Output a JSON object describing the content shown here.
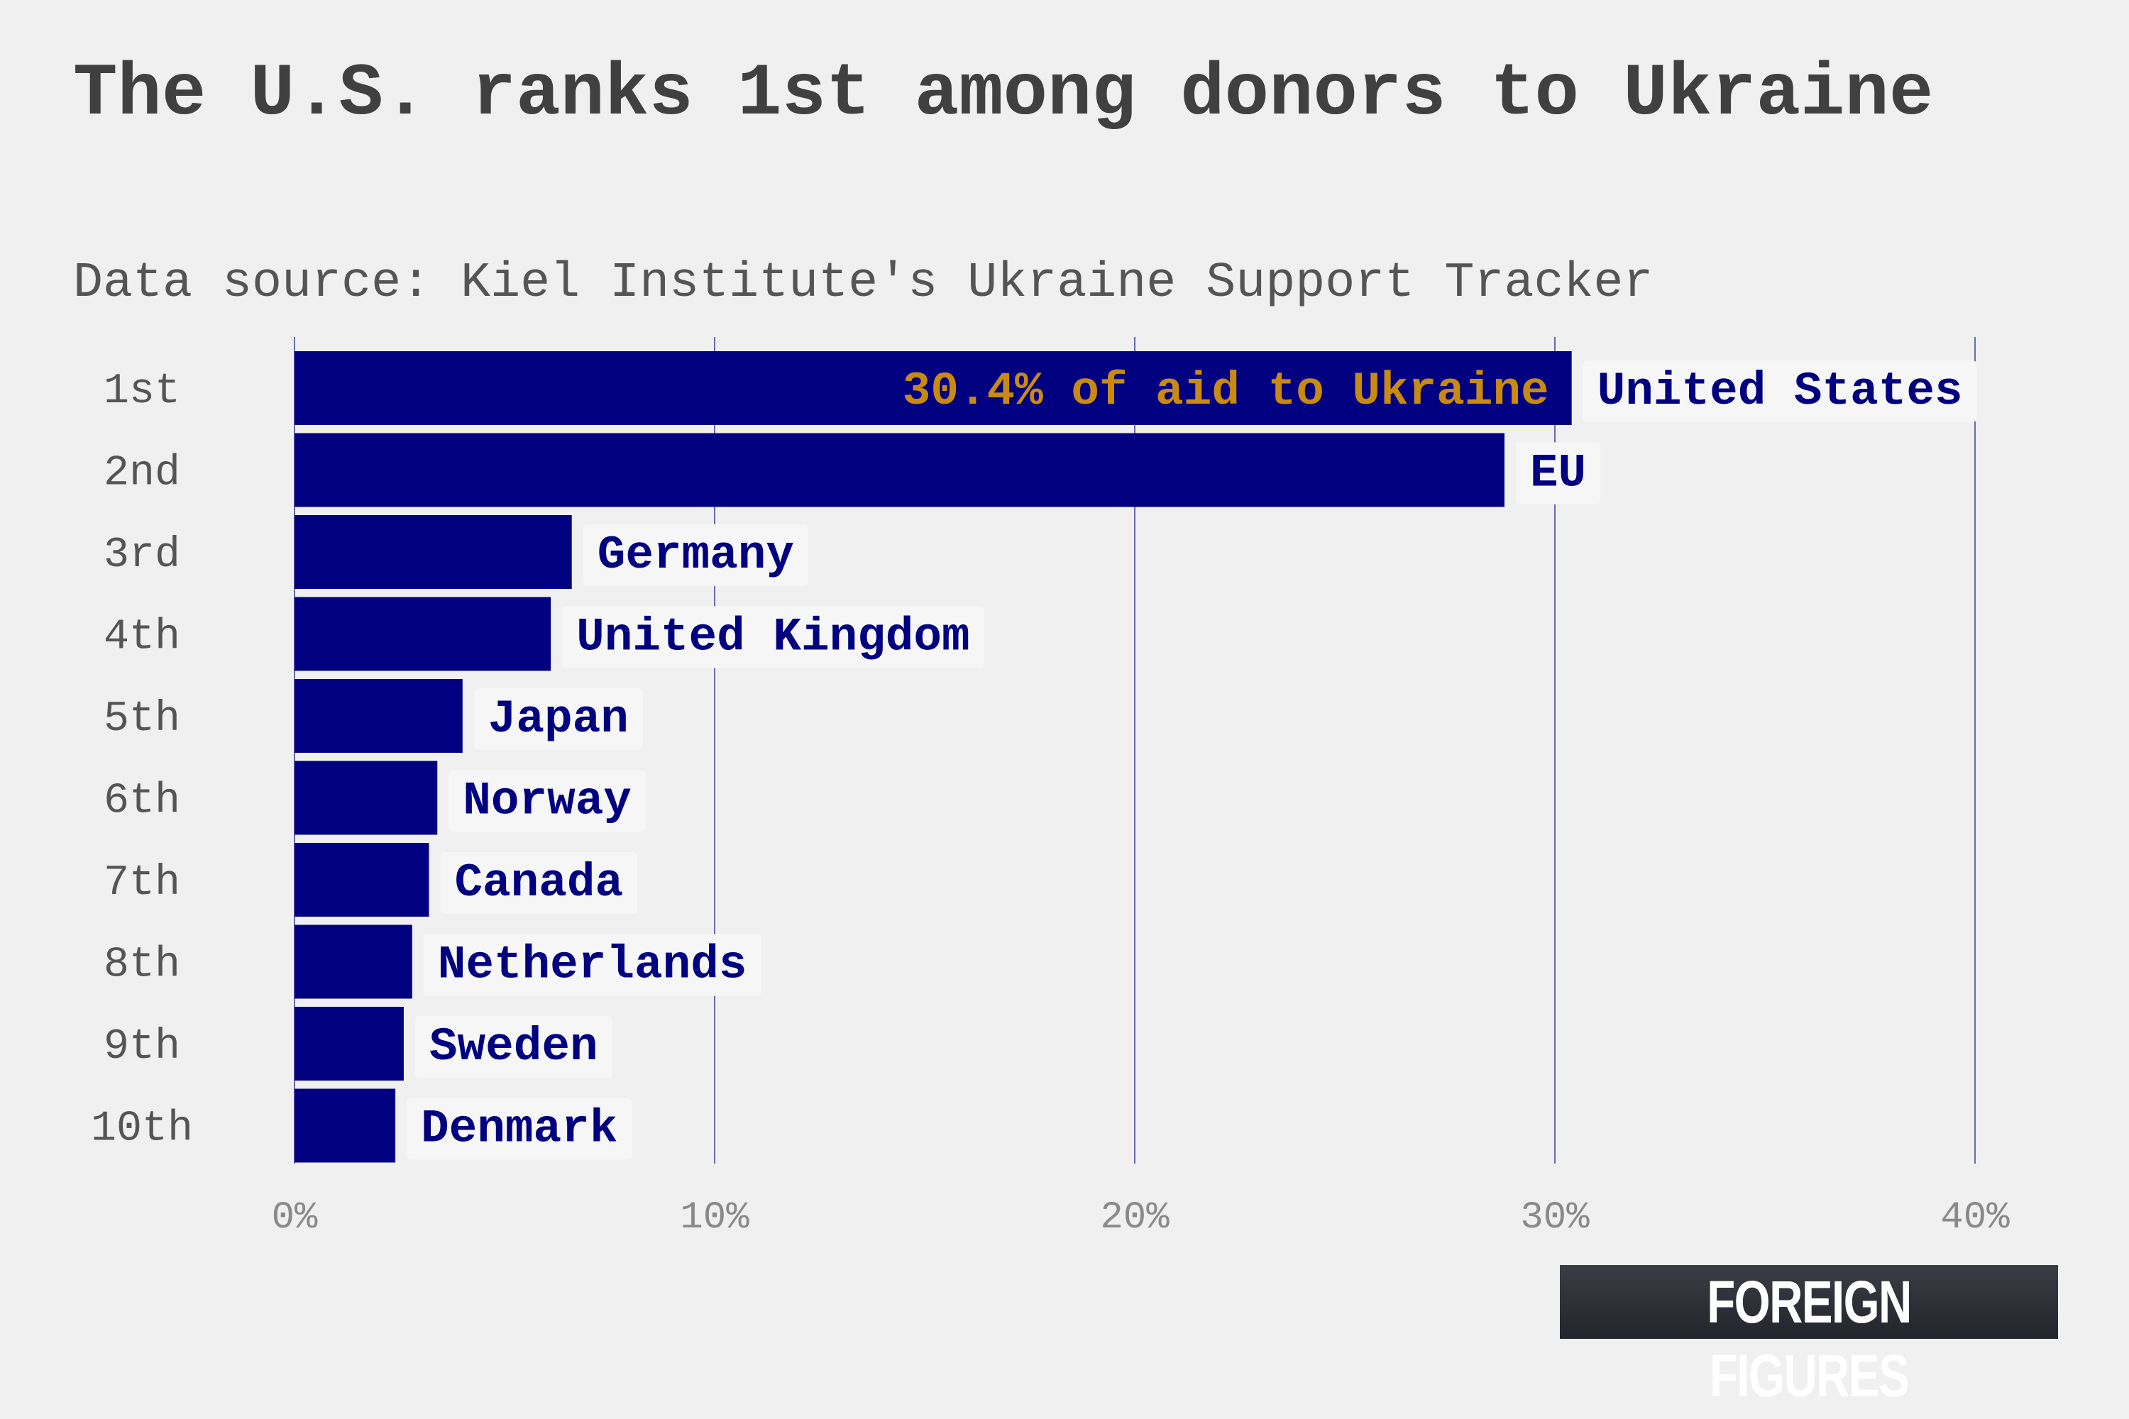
{
  "title": "The U.S. ranks 1st among donors to Ukraine",
  "subtitle": "Data source: Kiel Institute's Ukraine Support Tracker",
  "logo": "FOREIGN FIGURES",
  "colors": {
    "bar": "#000080",
    "annotation": "#c98a12",
    "grid": "#000080",
    "background": "#f0f0f0"
  },
  "chart_data": {
    "type": "bar",
    "orientation": "horizontal",
    "ranks": [
      "1st",
      "2nd",
      "3rd",
      "4th",
      "5th",
      "6th",
      "7th",
      "8th",
      "9th",
      "10th"
    ],
    "categories": [
      "United States",
      "EU",
      "Germany",
      "United Kingdom",
      "Japan",
      "Norway",
      "Canada",
      "Netherlands",
      "Sweden",
      "Denmark"
    ],
    "values": [
      30.4,
      28.8,
      6.6,
      6.1,
      4.0,
      3.4,
      3.2,
      2.8,
      2.6,
      2.4
    ],
    "annotation": "30.4% of aid to Ukraine",
    "xticks": [
      "0%",
      "10%",
      "20%",
      "30%",
      "40%"
    ],
    "xlim": [
      0,
      40
    ],
    "grid": "vertical",
    "unit": "%"
  }
}
